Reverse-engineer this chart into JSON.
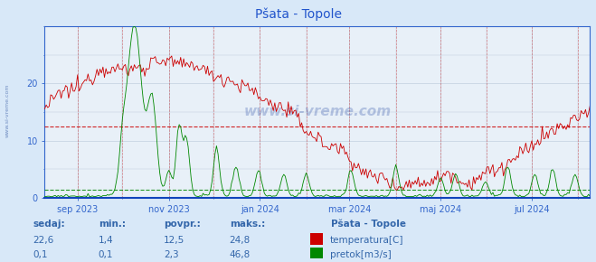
{
  "title": "Pšata - Topole",
  "bg_color": "#d8e8f8",
  "plot_bg_color": "#e8f0f8",
  "grid_color": "#b8c8d8",
  "temp_color": "#cc0000",
  "flow_color": "#008800",
  "avg_temp_line": 12.5,
  "avg_flow_line_scaled": 1.47,
  "ylim": [
    0,
    30
  ],
  "axis_color": "#3366cc",
  "title_color": "#2255cc",
  "watermark": "www.si-vreme.com",
  "footer_labels": [
    "sedaj:",
    "min.:",
    "povpr.:",
    "maks.:",
    "Pšata - Topole"
  ],
  "footer_temp_vals": [
    "22,6",
    "1,4",
    "12,5",
    "24,8"
  ],
  "footer_flow_vals": [
    "0,1",
    "0,1",
    "2,3",
    "46,8"
  ],
  "footer_temp_legend": "temperatura[C]",
  "footer_flow_legend": "pretok[m3/s]",
  "footer_color": "#3366aa",
  "temp_rect_color": "#cc0000",
  "flow_rect_color": "#008800",
  "yticks": [
    0,
    10,
    20
  ],
  "xlabels": [
    "sep 2023",
    "nov 2023",
    "jan 2024",
    "mar 2024",
    "maj 2024",
    "jul 2024"
  ],
  "n_points": 366,
  "flow_max_real": 46.8,
  "flow_plot_max": 30.0
}
